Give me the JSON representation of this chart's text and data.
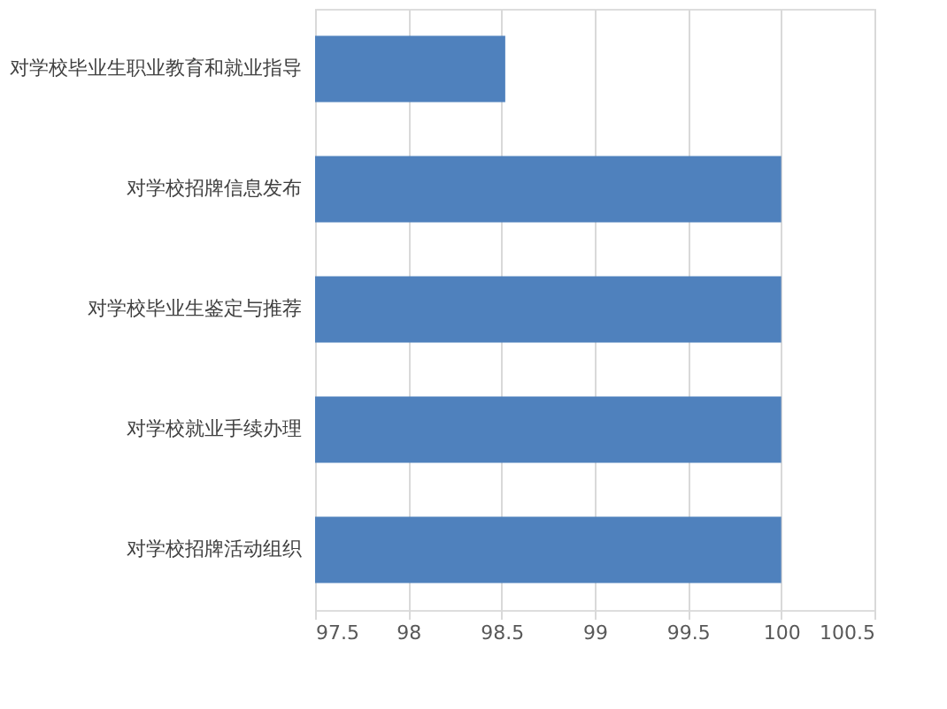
{
  "chart_data": {
    "type": "bar",
    "orientation": "horizontal",
    "categories": [
      "对学校毕业生职业教育和就业指导",
      "对学校招牌信息发布",
      "对学校毕业生鉴定与推荐",
      "对学校就业手续办理",
      "对学校招牌活动组织"
    ],
    "values": [
      98.52,
      100,
      100,
      100,
      100
    ],
    "color": "#4f81bd",
    "xlim": [
      97.5,
      100.5
    ],
    "xticks": [
      97.5,
      98,
      98.5,
      99,
      99.5,
      100,
      100.5
    ],
    "grid": "x"
  }
}
